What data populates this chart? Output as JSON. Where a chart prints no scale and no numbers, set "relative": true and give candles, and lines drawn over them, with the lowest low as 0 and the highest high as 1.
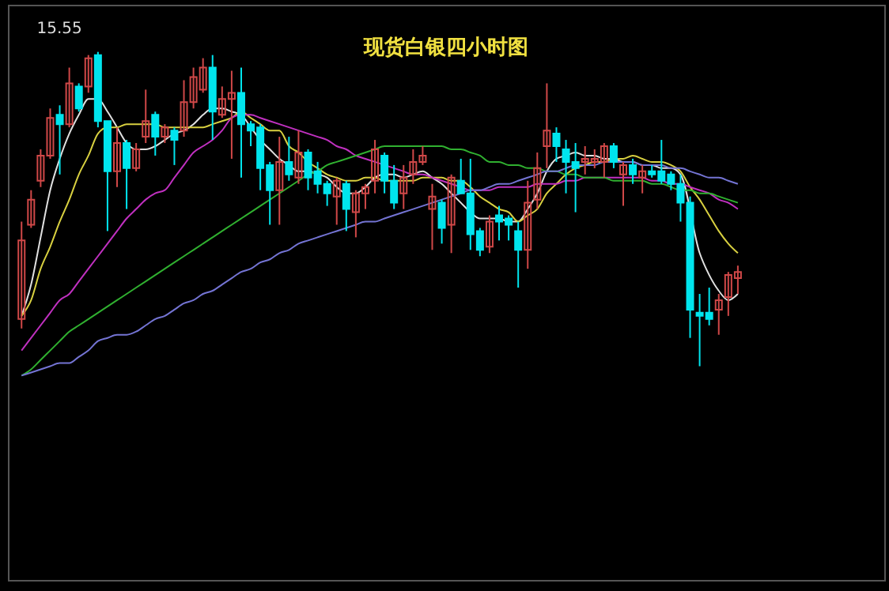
{
  "chart_data": {
    "type": "candlestick",
    "title": "现货白银四小时图",
    "relative": true,
    "annotations": [
      "15.55"
    ],
    "categories": [
      null,
      null,
      null,
      null,
      null,
      null,
      null,
      null,
      null,
      null,
      null,
      null,
      null,
      null,
      null,
      null,
      null,
      null,
      null,
      null,
      null,
      null,
      null,
      null,
      null,
      null,
      null,
      null,
      null,
      null,
      null,
      null,
      null,
      null,
      null,
      null,
      null,
      null,
      null,
      null,
      null,
      null,
      null,
      null,
      null,
      null,
      null,
      null,
      null,
      null,
      null,
      null,
      null,
      null,
      null,
      null,
      null,
      null,
      null,
      null,
      null,
      null,
      null,
      null,
      null,
      null,
      null,
      null,
      null,
      null,
      null,
      null,
      null,
      null,
      null,
      null
    ],
    "ohlc": [
      [
        0.15,
        0.46,
        0.12,
        0.4
      ],
      [
        0.45,
        0.56,
        0.44,
        0.53
      ],
      [
        0.59,
        0.69,
        0.57,
        0.67
      ],
      [
        0.67,
        0.82,
        0.66,
        0.79
      ],
      [
        0.8,
        0.83,
        0.61,
        0.77
      ],
      [
        0.77,
        0.95,
        0.76,
        0.9
      ],
      [
        0.89,
        0.9,
        0.81,
        0.82
      ],
      [
        0.89,
        0.99,
        0.87,
        0.98
      ],
      [
        0.99,
        1,
        0.76,
        0.78
      ],
      [
        0.78,
        0.78,
        0.43,
        0.62
      ],
      [
        0.62,
        0.76,
        0.57,
        0.71
      ],
      [
        0.71,
        0.72,
        0.5,
        0.63
      ],
      [
        0.63,
        0.71,
        0.62,
        0.69
      ],
      [
        0.73,
        0.88,
        0.71,
        0.78
      ],
      [
        0.8,
        0.81,
        0.67,
        0.73
      ],
      [
        0.73,
        0.77,
        0.71,
        0.76
      ],
      [
        0.75,
        0.76,
        0.64,
        0.72
      ],
      [
        0.75,
        0.91,
        0.73,
        0.84
      ],
      [
        0.84,
        0.95,
        0.82,
        0.92
      ],
      [
        0.88,
        0.98,
        0.87,
        0.95
      ],
      [
        0.95,
        0.99,
        0.72,
        0.81
      ],
      [
        0.8,
        0.89,
        0.79,
        0.85
      ],
      [
        0.85,
        0.94,
        0.66,
        0.87
      ],
      [
        0.87,
        0.95,
        0.6,
        0.77
      ],
      [
        0.77,
        0.78,
        0.7,
        0.75
      ],
      [
        0.76,
        0.77,
        0.56,
        0.63
      ],
      [
        0.64,
        0.65,
        0.45,
        0.56
      ],
      [
        0.56,
        0.73,
        0.45,
        0.65
      ],
      [
        0.65,
        0.73,
        0.59,
        0.61
      ],
      [
        0.6,
        0.75,
        0.58,
        0.68
      ],
      [
        0.68,
        0.69,
        0.56,
        0.6
      ],
      [
        0.62,
        0.65,
        0.55,
        0.58
      ],
      [
        0.58,
        0.59,
        0.51,
        0.55
      ],
      [
        0.54,
        0.6,
        0.45,
        0.59
      ],
      [
        0.58,
        0.59,
        0.43,
        0.5
      ],
      [
        0.49,
        0.56,
        0.41,
        0.55
      ],
      [
        0.55,
        0.58,
        0.5,
        0.57
      ],
      [
        0.59,
        0.72,
        0.55,
        0.69
      ],
      [
        0.67,
        0.68,
        0.55,
        0.59
      ],
      [
        0.59,
        0.64,
        0.5,
        0.52
      ],
      [
        0.55,
        0.64,
        0.5,
        0.6
      ],
      [
        0.61,
        0.69,
        0.58,
        0.65
      ],
      [
        0.65,
        0.7,
        0.64,
        0.67
      ],
      [
        0.5,
        0.58,
        0.37,
        0.54
      ],
      [
        0.52,
        0.53,
        0.39,
        0.44
      ],
      [
        0.45,
        0.61,
        0.36,
        0.6
      ],
      [
        0.59,
        0.66,
        0.55,
        0.55
      ],
      [
        0.55,
        0.66,
        0.37,
        0.42
      ],
      [
        0.43,
        0.44,
        0.35,
        0.37
      ],
      [
        0.38,
        0.48,
        0.36,
        0.46
      ],
      [
        0.48,
        0.51,
        0.4,
        0.46
      ],
      [
        0.47,
        0.48,
        0.4,
        0.45
      ],
      [
        0.43,
        0.46,
        0.25,
        0.37
      ],
      [
        0.37,
        0.59,
        0.31,
        0.52
      ],
      [
        0.53,
        0.68,
        0.5,
        0.63
      ],
      [
        0.7,
        0.9,
        0.63,
        0.75
      ],
      [
        0.74,
        0.76,
        0.65,
        0.7
      ],
      [
        0.69,
        0.72,
        0.55,
        0.65
      ],
      [
        0.65,
        0.71,
        0.49,
        0.63
      ],
      [
        0.65,
        0.7,
        0.61,
        0.66
      ],
      [
        0.65,
        0.69,
        0.63,
        0.66
      ],
      [
        0.65,
        0.71,
        0.6,
        0.7
      ],
      [
        0.7,
        0.71,
        0.63,
        0.65
      ],
      [
        0.61,
        0.65,
        0.51,
        0.64
      ],
      [
        0.64,
        0.66,
        0.58,
        0.61
      ],
      [
        0.6,
        0.64,
        0.55,
        0.62
      ],
      [
        0.62,
        0.64,
        0.6,
        0.61
      ],
      [
        0.62,
        0.72,
        0.58,
        0.59
      ],
      [
        0.61,
        0.62,
        0.56,
        0.58
      ],
      [
        0.58,
        0.61,
        0.46,
        0.52
      ],
      [
        0.52,
        0.54,
        0.09,
        0.18
      ],
      [
        0.17,
        0.23,
        0,
        0.16
      ],
      [
        0.17,
        0.25,
        0.13,
        0.15
      ],
      [
        0.18,
        0.23,
        0.1,
        0.21
      ],
      [
        0.22,
        0.3,
        0.16,
        0.29
      ],
      [
        0.28,
        0.32,
        0.23,
        0.3
      ]
    ],
    "colors": [
      "#d04848",
      "#d04848",
      "#d04848",
      "#d04848",
      "#00e5ee",
      "#d04848",
      "#00e5ee",
      "#d04848",
      "#00e5ee",
      "#00e5ee",
      "#d04848",
      "#00e5ee",
      "#d04848",
      "#d04848",
      "#00e5ee",
      "#d04848",
      "#00e5ee",
      "#d04848",
      "#d04848",
      "#d04848",
      "#00e5ee",
      "#d04848",
      "#d04848",
      "#00e5ee",
      "#00e5ee",
      "#00e5ee",
      "#00e5ee",
      "#d04848",
      "#00e5ee",
      "#d04848",
      "#00e5ee",
      "#00e5ee",
      "#00e5ee",
      "#d04848",
      "#00e5ee",
      "#d04848",
      "#d04848",
      "#d04848",
      "#00e5ee",
      "#00e5ee",
      "#d04848",
      "#d04848",
      "#d04848",
      "#d04848",
      "#00e5ee",
      "#d04848",
      "#00e5ee",
      "#00e5ee",
      "#00e5ee",
      "#d04848",
      "#00e5ee",
      "#00e5ee",
      "#00e5ee",
      "#d04848",
      "#d04848",
      "#d04848",
      "#00e5ee",
      "#00e5ee",
      "#00e5ee",
      "#d04848",
      "#d04848",
      "#d04848",
      "#00e5ee",
      "#d04848",
      "#00e5ee",
      "#d04848",
      "#00e5ee",
      "#00e5ee",
      "#00e5ee",
      "#00e5ee",
      "#00e5ee",
      "#00e5ee",
      "#00e5ee",
      "#d04848",
      "#d04848",
      "#d04848"
    ],
    "series": [
      {
        "type": "line",
        "color": "#e0e0e0",
        "values": [
          0.16,
          0.26,
          0.41,
          0.56,
          0.66,
          0.74,
          0.8,
          0.85,
          0.85,
          0.81,
          0.76,
          0.71,
          0.69,
          0.69,
          0.7,
          0.72,
          0.74,
          0.75,
          0.77,
          0.8,
          0.82,
          0.82,
          0.81,
          0.8,
          0.76,
          0.72,
          0.69,
          0.66,
          0.64,
          0.62,
          0.62,
          0.61,
          0.6,
          0.57,
          0.55,
          0.55,
          0.57,
          0.6,
          0.61,
          0.61,
          0.6,
          0.61,
          0.62,
          0.6,
          0.58,
          0.55,
          0.52,
          0.49,
          0.47,
          0.47,
          0.47,
          0.46,
          0.46,
          0.5,
          0.55,
          0.62,
          0.66,
          0.67,
          0.68,
          0.67,
          0.67,
          0.66,
          0.66,
          0.65,
          0.65,
          0.64,
          0.64,
          0.63,
          0.63,
          0.61,
          null,
          0.36,
          0.29,
          0.24,
          0.21,
          0.23
        ]
      },
      {
        "type": "line",
        "color": "#d8d040",
        "values": [
          0.16,
          0.21,
          0.31,
          0.38,
          0.46,
          0.53,
          0.61,
          0.67,
          0.74,
          0.76,
          0.76,
          0.77,
          0.77,
          0.77,
          0.77,
          0.76,
          0.76,
          0.76,
          0.76,
          0.76,
          0.77,
          0.78,
          0.79,
          0.81,
          0.79,
          0.77,
          0.75,
          0.75,
          0.7,
          0.68,
          0.65,
          0.63,
          0.61,
          0.6,
          0.59,
          0.59,
          0.6,
          0.6,
          0.59,
          0.59,
          0.59,
          0.59,
          0.6,
          0.6,
          0.6,
          0.59,
          0.59,
          0.57,
          0.54,
          0.52,
          0.5,
          0.49,
          0.46,
          0.48,
          0.5,
          0.55,
          0.58,
          0.61,
          0.63,
          0.64,
          0.65,
          0.65,
          0.66,
          0.66,
          0.67,
          0.66,
          0.65,
          0.65,
          0.64,
          0.62,
          0.57,
          0.53,
          0.48,
          0.43,
          0.39,
          0.36
        ]
      },
      {
        "type": "line",
        "color": "#c030c0",
        "values": [
          0.05,
          0.09,
          0.13,
          0.17,
          0.21,
          0.23,
          0.27,
          0.31,
          0.35,
          0.39,
          0.43,
          0.47,
          0.5,
          0.53,
          0.55,
          0.56,
          0.6,
          0.64,
          0.68,
          0.7,
          0.72,
          0.75,
          0.79,
          0.8,
          0.8,
          0.79,
          0.78,
          0.77,
          0.76,
          0.75,
          0.74,
          0.73,
          0.72,
          0.7,
          0.69,
          0.67,
          0.66,
          0.65,
          0.64,
          0.63,
          0.62,
          0.61,
          0.61,
          0.6,
          0.59,
          0.58,
          0.57,
          0.56,
          0.56,
          0.56,
          0.57,
          0.57,
          0.57,
          0.57,
          0.58,
          0.58,
          0.58,
          0.59,
          0.59,
          0.6,
          0.6,
          0.6,
          0.6,
          0.6,
          0.6,
          0.6,
          0.59,
          0.59,
          0.58,
          0.58,
          0.57,
          0.56,
          0.55,
          0.53,
          0.52,
          0.5
        ]
      },
      {
        "type": "line",
        "color": "#30b030",
        "values": [
          -0.03,
          -0.01,
          0.02,
          0.05,
          0.08,
          0.11,
          0.13,
          0.15,
          0.17,
          0.19,
          0.21,
          0.23,
          0.25,
          0.27,
          0.29,
          0.31,
          0.33,
          0.35,
          0.37,
          0.39,
          0.41,
          0.43,
          0.45,
          0.47,
          0.49,
          0.51,
          0.53,
          0.55,
          0.57,
          0.59,
          0.61,
          0.62,
          0.64,
          0.65,
          0.66,
          0.67,
          0.68,
          0.69,
          0.7,
          0.7,
          0.7,
          0.7,
          0.7,
          0.7,
          0.7,
          0.69,
          0.69,
          0.68,
          0.67,
          0.65,
          0.65,
          0.64,
          0.64,
          0.63,
          0.63,
          0.62,
          0.62,
          0.61,
          0.61,
          0.6,
          0.6,
          0.6,
          0.59,
          0.59,
          0.59,
          0.59,
          0.58,
          0.58,
          0.57,
          0.56,
          0.56,
          0.55,
          0.55,
          0.54,
          0.53,
          0.52
        ]
      },
      {
        "type": "line",
        "color": "#7474d4",
        "values": [
          -0.03,
          -0.02,
          -0.01,
          0,
          0.01,
          0.01,
          0.03,
          0.05,
          0.08,
          0.09,
          0.1,
          0.1,
          0.11,
          0.13,
          0.15,
          0.16,
          0.18,
          0.2,
          0.21,
          0.23,
          0.24,
          0.26,
          0.28,
          0.3,
          0.31,
          0.33,
          0.34,
          0.36,
          0.37,
          0.39,
          0.4,
          0.41,
          0.42,
          0.43,
          0.44,
          0.45,
          0.46,
          0.46,
          0.47,
          0.48,
          0.49,
          0.5,
          0.51,
          0.52,
          0.53,
          0.54,
          0.55,
          0.56,
          0.56,
          0.57,
          0.58,
          0.58,
          0.59,
          0.6,
          0.61,
          0.62,
          0.62,
          0.63,
          0.64,
          0.64,
          0.64,
          0.65,
          0.65,
          0.65,
          0.65,
          0.64,
          0.64,
          0.64,
          0.63,
          0.63,
          0.62,
          0.61,
          0.6,
          0.6,
          0.59,
          0.58
        ]
      }
    ]
  }
}
